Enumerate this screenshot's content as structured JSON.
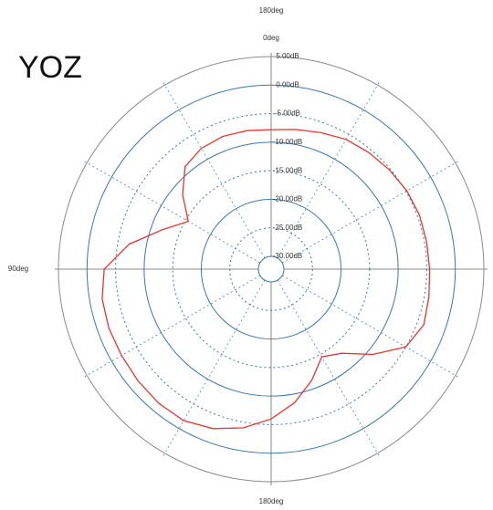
{
  "chart_data": {
    "type": "polar",
    "title": "YOZ",
    "x": [
      0,
      10,
      20,
      30,
      40,
      50,
      60,
      70,
      80,
      90,
      100,
      110,
      120,
      130,
      140,
      150,
      160,
      170,
      180,
      190,
      200,
      210,
      220,
      230,
      240,
      250,
      260,
      270,
      280,
      290,
      300,
      310,
      320,
      330,
      340,
      350
    ],
    "values": [
      -7.8,
      -7.6,
      -7.5,
      -7.8,
      -8.8,
      -12,
      -15.5,
      -12,
      -7,
      -3,
      -2.2,
      -2,
      -2,
      -1.8,
      -1.6,
      -1.6,
      -2.5,
      -4,
      -6,
      -8.5,
      -11.5,
      -14.5,
      -13,
      -9,
      -5,
      -3.8,
      -4.2,
      -4.5,
      -4.6,
      -4.6,
      -4.8,
      -5.2,
      -5.6,
      -6,
      -6.8,
      -7.4
    ],
    "color": "#e8342f",
    "ylim": [
      -30,
      5
    ],
    "yticks": [
      {
        "value": 5,
        "label": "5.00dB"
      },
      {
        "value": 0,
        "label": "0.00dB"
      },
      {
        "value": -5,
        "label": "-5.00dB"
      },
      {
        "value": -10,
        "label": "-10.00dB"
      },
      {
        "value": -15,
        "label": "-15.00dB"
      },
      {
        "value": -20,
        "label": "-20.00dB"
      },
      {
        "value": -25,
        "label": "-25.00dB"
      },
      {
        "value": -30,
        "label": "-30.00dB"
      }
    ],
    "angle_grid": [
      0,
      30,
      60,
      90,
      120,
      150,
      180,
      210,
      240,
      270,
      300,
      330
    ],
    "xticks": [
      {
        "value": 0,
        "label": "0deg"
      },
      {
        "value": 90,
        "label": "90deg"
      },
      {
        "value": 180,
        "label": "180deg"
      }
    ],
    "annotation": "180deg"
  }
}
